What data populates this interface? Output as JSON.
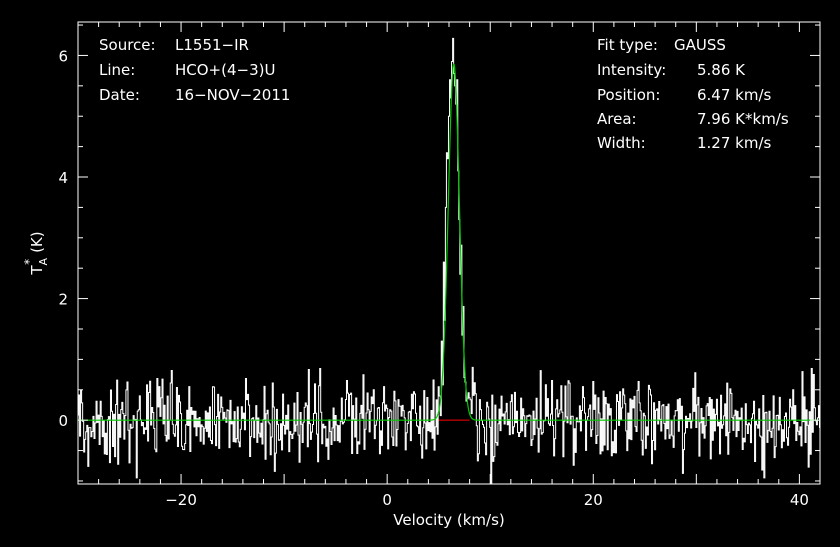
{
  "chart_data": {
    "type": "line",
    "xlabel": "Velocity (km/s)",
    "ylabel_main": "T",
    "ylabel_sub": "A",
    "ylabel_sup": "*",
    "ylabel_unit": "(K)",
    "xlim": [
      -30,
      42
    ],
    "ylim": [
      -1.05,
      6.55
    ],
    "xticks_major": [
      -20,
      0,
      20,
      40
    ],
    "xtick_labels": [
      "−20",
      "0",
      "20",
      "40"
    ],
    "yticks_major": [
      0,
      2,
      4,
      6
    ],
    "ytick_labels": [
      "0",
      "2",
      "4",
      "6"
    ],
    "header_left": [
      {
        "label": "Source:",
        "value": "L1551−IR"
      },
      {
        "label": "Line:",
        "value": "HCO+(4−3)U"
      },
      {
        "label": "Date:",
        "value": "16−NOV−2011"
      }
    ],
    "header_right": [
      {
        "label": "Fit type:",
        "value": "GAUSS"
      },
      {
        "label": "Intensity:",
        "value": "5.86 K"
      },
      {
        "label": "Position:",
        "value": "6.47 km/s"
      },
      {
        "label": "Area:",
        "value": "7.96 K*km/s"
      },
      {
        "label": "Width:",
        "value": "1.27 km/s"
      }
    ],
    "fit": {
      "amplitude": 5.86,
      "center": 6.47,
      "fwhm": 1.27
    },
    "series": [
      {
        "channel_width": 0.1,
        "x_start": -30,
        "noise_rms": 0.33,
        "seed": 20111116,
        "peak_overrides": [
          {
            "x": 5.0,
            "y": 0.55
          },
          {
            "x": 5.3,
            "y": 1.3
          },
          {
            "x": 5.5,
            "y": 2.6
          },
          {
            "x": 5.7,
            "y": 3.5
          },
          {
            "x": 5.8,
            "y": 4.4
          },
          {
            "x": 5.9,
            "y": 4.3
          },
          {
            "x": 6.0,
            "y": 5.0
          },
          {
            "x": 6.1,
            "y": 5.6
          },
          {
            "x": 6.2,
            "y": 5.3
          },
          {
            "x": 6.3,
            "y": 5.9
          },
          {
            "x": 6.4,
            "y": 6.28
          },
          {
            "x": 6.5,
            "y": 5.7
          },
          {
            "x": 6.6,
            "y": 5.5
          },
          {
            "x": 6.7,
            "y": 5.2
          },
          {
            "x": 6.8,
            "y": 5.6
          },
          {
            "x": 6.9,
            "y": 4.1
          },
          {
            "x": 7.0,
            "y": 3.3
          },
          {
            "x": 7.1,
            "y": 2.4
          },
          {
            "x": 7.3,
            "y": 1.4
          },
          {
            "x": 7.5,
            "y": 0.7
          },
          {
            "x": 7.8,
            "y": 0.35
          },
          {
            "x": 10.1,
            "y": -1.05
          }
        ]
      }
    ],
    "colors": {
      "background": "#000000",
      "axes": "#ffffff",
      "spectrum": "#ffffff",
      "fit": "#00cc00",
      "baseline": "#ff0000"
    }
  }
}
